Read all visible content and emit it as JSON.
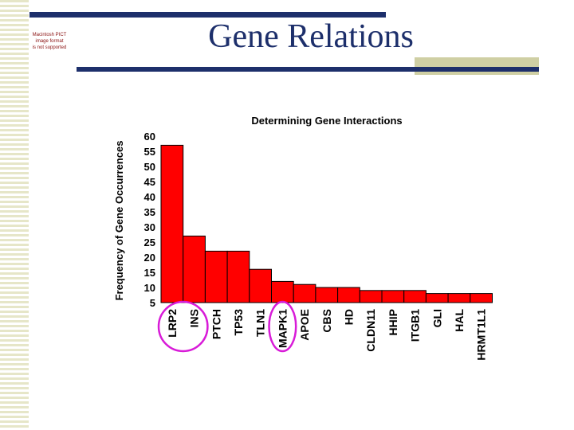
{
  "slide": {
    "title": "Gene Relations",
    "pict_notice": [
      "Macintosh PICT",
      "image format",
      "is not supported"
    ]
  },
  "colors": {
    "rule": "#1d2f6b",
    "bar": "#ff0000",
    "bar_outline": "#000000",
    "circle": "#d81bd8",
    "stripe": "#e6e6c8"
  },
  "chart_data": {
    "type": "bar",
    "title": "Determining Gene Interactions",
    "ylabel": "Frequency of Gene Occurrences",
    "xlabel": "",
    "categories": [
      "LRP2",
      "INS",
      "PTCH",
      "TP53",
      "TLN1",
      "MAPK1",
      "APOE",
      "CBS",
      "HD",
      "CLDN11",
      "HHIP",
      "ITGB1",
      "GLI",
      "HAL",
      "HRMT1L1"
    ],
    "values": [
      57,
      27,
      22,
      22,
      16,
      12,
      11,
      10,
      10,
      9,
      9,
      9,
      8,
      8,
      8
    ],
    "ylim": [
      5,
      60
    ],
    "yticks": [
      "5",
      "10",
      "15",
      "20",
      "25",
      "30",
      "35",
      "40",
      "45",
      "50",
      "55",
      "60"
    ],
    "grid": false,
    "legend": "none",
    "highlighted_categories": [
      "LRP2",
      "INS",
      "MAPK1"
    ]
  }
}
